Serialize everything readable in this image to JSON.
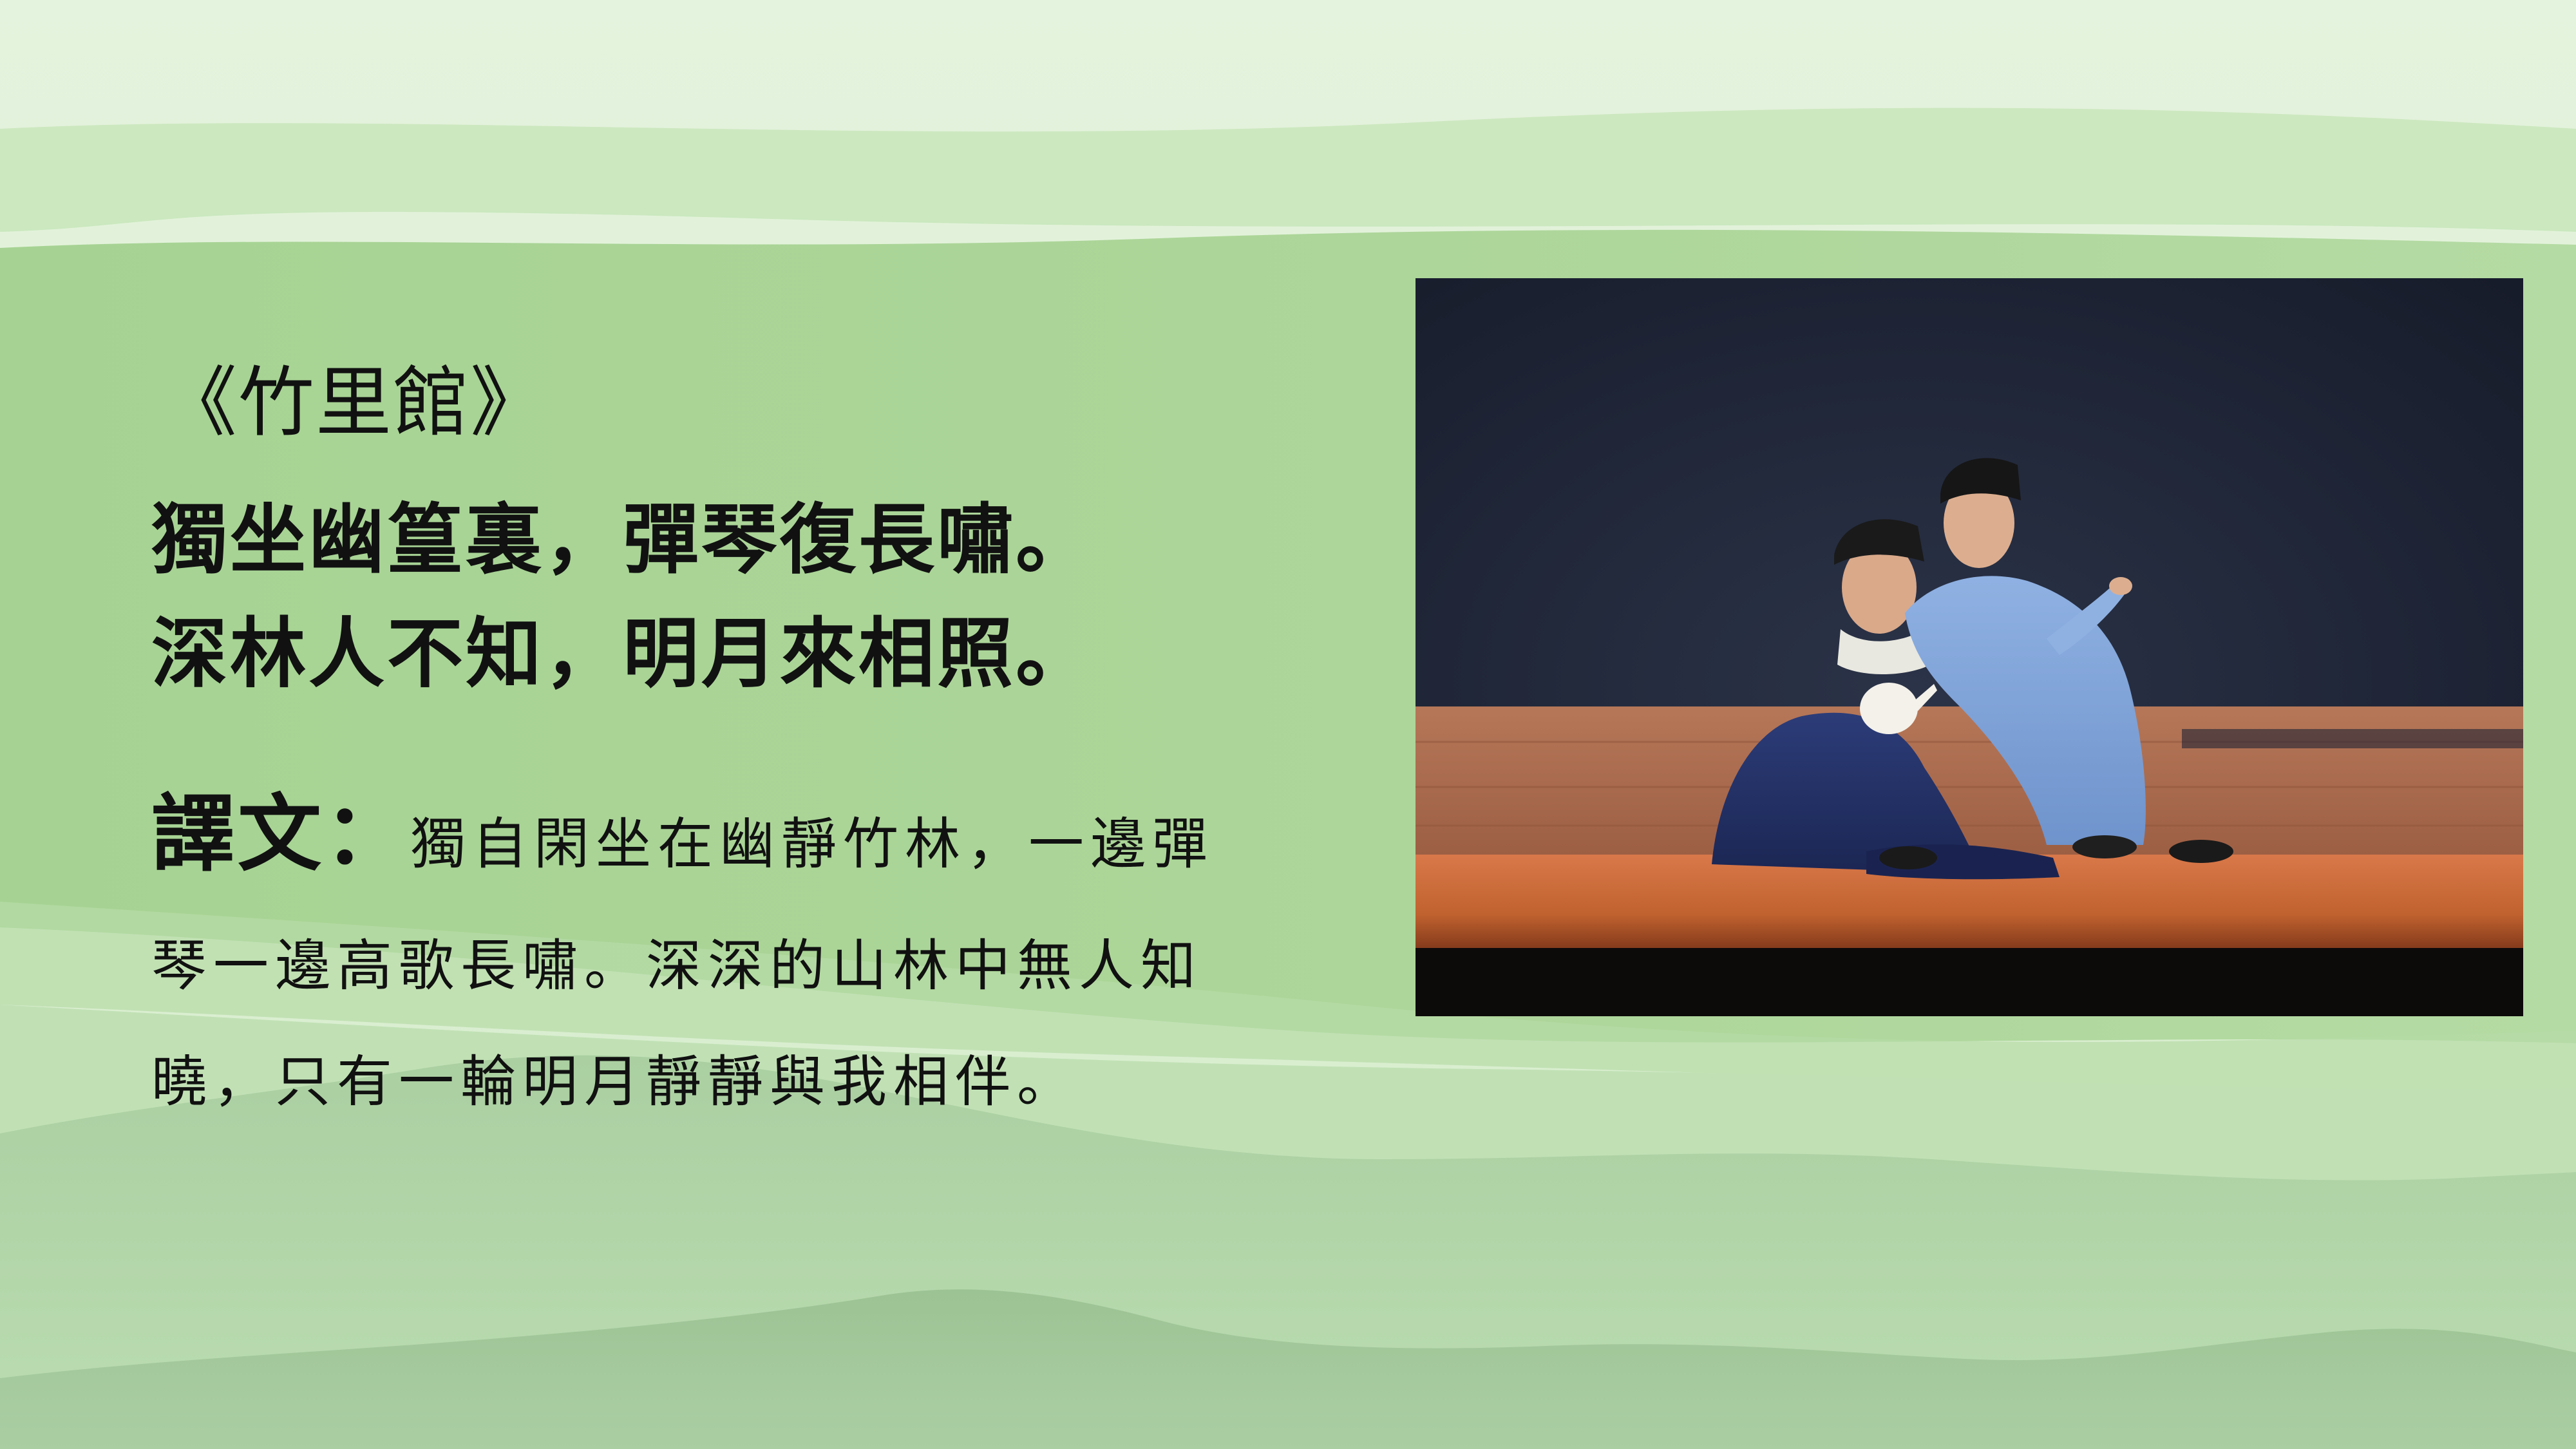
{
  "slide": {
    "title": "《竹里館》",
    "poem": {
      "line1": "獨坐幽篁裏，彈琴復長嘯。",
      "line2": "深林人不知，明月來相照。"
    },
    "translation": {
      "label": "譯文：",
      "line1": "獨自閑坐在幽靜竹林，一邊彈",
      "line2": "琴一邊高歌長嘯。深深的山林中無人知",
      "line3": "曉，只有一輪明月靜靜與我相伴。"
    },
    "photo": {
      "subject": "stage-performance-photo"
    },
    "colors": {
      "background_green": "#a9d495",
      "text": "#111111",
      "stage_backdrop": "#1d2434",
      "stage_floor": "#c9683a"
    }
  }
}
